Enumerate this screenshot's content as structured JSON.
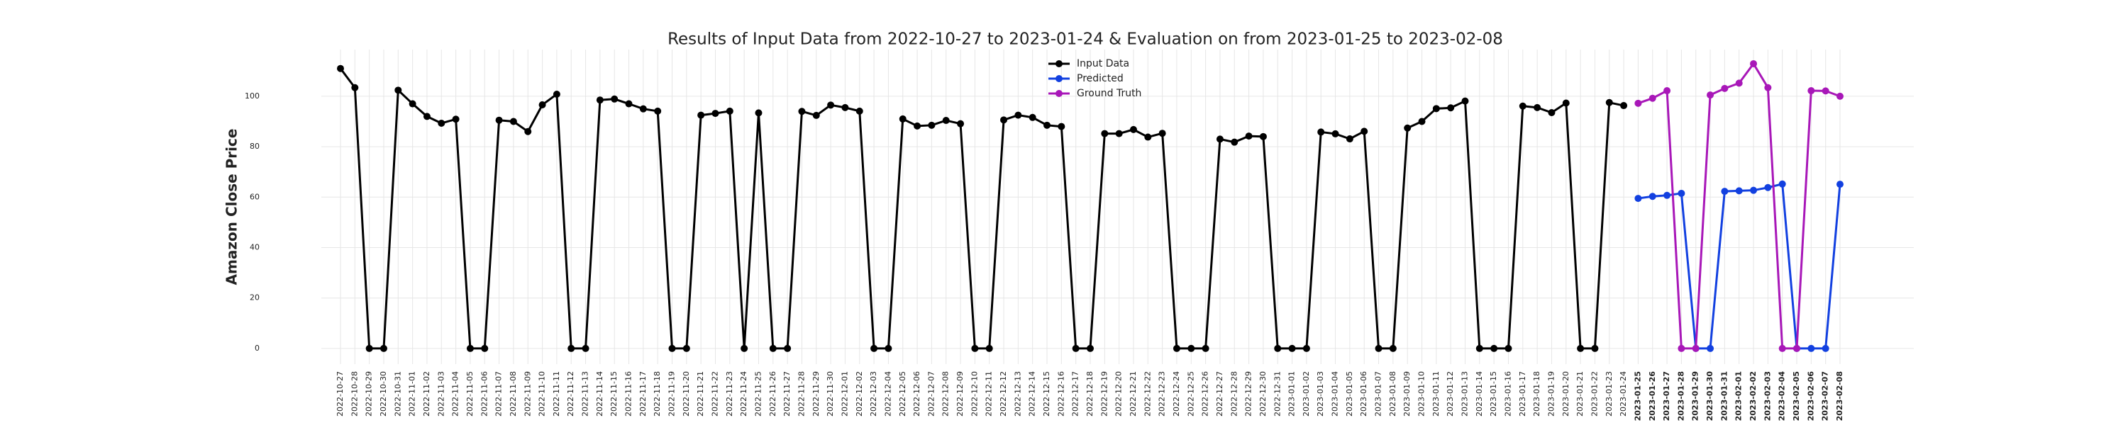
{
  "chart_data": {
    "type": "line",
    "title": "Results of Input Data from 2022-10-27 to 2023-01-24 & Evaluation on from 2023-01-25 to 2023-02-08",
    "y_label": "Amazon Close Price",
    "categories": [
      "2022-10-27",
      "2022-10-28",
      "2022-10-29",
      "2022-10-30",
      "2022-10-31",
      "2022-11-01",
      "2022-11-02",
      "2022-11-03",
      "2022-11-04",
      "2022-11-05",
      "2022-11-06",
      "2022-11-07",
      "2022-11-08",
      "2022-11-09",
      "2022-11-10",
      "2022-11-11",
      "2022-11-12",
      "2022-11-13",
      "2022-11-14",
      "2022-11-15",
      "2022-11-16",
      "2022-11-17",
      "2022-11-18",
      "2022-11-19",
      "2022-11-20",
      "2022-11-21",
      "2022-11-22",
      "2022-11-23",
      "2022-11-24",
      "2022-11-25",
      "2022-11-26",
      "2022-11-27",
      "2022-11-28",
      "2022-11-29",
      "2022-11-30",
      "2022-12-01",
      "2022-12-02",
      "2022-12-03",
      "2022-12-04",
      "2022-12-05",
      "2022-12-06",
      "2022-12-07",
      "2022-12-08",
      "2022-12-09",
      "2022-12-10",
      "2022-12-11",
      "2022-12-12",
      "2022-12-13",
      "2022-12-14",
      "2022-12-15",
      "2022-12-16",
      "2022-12-17",
      "2022-12-18",
      "2022-12-19",
      "2022-12-20",
      "2022-12-21",
      "2022-12-22",
      "2022-12-23",
      "2022-12-24",
      "2022-12-25",
      "2022-12-26",
      "2022-12-27",
      "2022-12-28",
      "2022-12-29",
      "2022-12-30",
      "2022-12-31",
      "2023-01-01",
      "2023-01-02",
      "2023-01-03",
      "2023-01-04",
      "2023-01-05",
      "2023-01-06",
      "2023-01-07",
      "2023-01-08",
      "2023-01-09",
      "2023-01-10",
      "2023-01-11",
      "2023-01-12",
      "2023-01-13",
      "2023-01-14",
      "2023-01-15",
      "2023-01-16",
      "2023-01-17",
      "2023-01-18",
      "2023-01-19",
      "2023-01-20",
      "2023-01-21",
      "2023-01-22",
      "2023-01-23",
      "2023-01-24",
      "2023-01-25",
      "2023-01-26",
      "2023-01-27",
      "2023-01-28",
      "2023-01-29",
      "2023-01-30",
      "2023-01-31",
      "2023-02-01",
      "2023-02-02",
      "2023-02-03",
      "2023-02-04",
      "2023-02-05",
      "2023-02-06",
      "2023-02-07",
      "2023-02-08"
    ],
    "series": [
      {
        "name": "Input Data",
        "color": "#000000",
        "values": [
          111,
          103.4,
          0,
          0,
          102.4,
          97,
          92,
          89.3,
          90.9,
          0,
          0,
          90.5,
          90,
          86,
          96.6,
          100.8,
          0,
          0,
          98.5,
          98.9,
          97,
          95,
          94.1,
          0,
          0,
          92.5,
          93.2,
          94.1,
          0,
          93.4,
          0,
          0,
          94,
          92.4,
          96.5,
          95.5,
          94.1,
          0,
          0,
          91,
          88.2,
          88.5,
          90.4,
          89.1,
          0,
          0,
          90.6,
          92.5,
          91.6,
          88.5,
          88,
          0,
          0,
          85.2,
          85.2,
          86.8,
          83.8,
          85.3,
          0,
          0,
          0,
          83,
          81.8,
          84.2,
          84,
          0,
          0,
          0,
          85.8,
          85.1,
          83.1,
          86.1,
          0,
          0,
          87.4,
          90,
          95.1,
          95.4,
          98.1,
          0,
          0,
          0,
          96.1,
          95.5,
          93.5,
          97.3,
          0,
          0,
          97.5,
          96.3,
          null,
          null,
          null,
          null,
          null,
          null,
          null,
          null,
          null,
          null,
          null,
          null,
          null,
          null,
          null
        ]
      },
      {
        "name": "Predicted",
        "color": "#1240e0",
        "values": [
          null,
          null,
          null,
          null,
          null,
          null,
          null,
          null,
          null,
          null,
          null,
          null,
          null,
          null,
          null,
          null,
          null,
          null,
          null,
          null,
          null,
          null,
          null,
          null,
          null,
          null,
          null,
          null,
          null,
          null,
          null,
          null,
          null,
          null,
          null,
          null,
          null,
          null,
          null,
          null,
          null,
          null,
          null,
          null,
          null,
          null,
          null,
          null,
          null,
          null,
          null,
          null,
          null,
          null,
          null,
          null,
          null,
          null,
          null,
          null,
          null,
          null,
          null,
          null,
          null,
          null,
          null,
          null,
          null,
          null,
          null,
          null,
          null,
          null,
          null,
          null,
          null,
          null,
          null,
          null,
          null,
          null,
          null,
          null,
          null,
          null,
          null,
          null,
          null,
          null,
          59.5,
          60.3,
          60.7,
          61.5,
          0,
          0,
          62.3,
          62.5,
          62.7,
          63.8,
          65.2,
          0,
          0,
          0,
          65.1
        ]
      },
      {
        "name": "Ground Truth",
        "color": "#a817b8",
        "values": [
          null,
          null,
          null,
          null,
          null,
          null,
          null,
          null,
          null,
          null,
          null,
          null,
          null,
          null,
          null,
          null,
          null,
          null,
          null,
          null,
          null,
          null,
          null,
          null,
          null,
          null,
          null,
          null,
          null,
          null,
          null,
          null,
          null,
          null,
          null,
          null,
          null,
          null,
          null,
          null,
          null,
          null,
          null,
          null,
          null,
          null,
          null,
          null,
          null,
          null,
          null,
          null,
          null,
          null,
          null,
          null,
          null,
          null,
          null,
          null,
          null,
          null,
          null,
          null,
          null,
          null,
          null,
          null,
          null,
          null,
          null,
          null,
          null,
          null,
          null,
          null,
          null,
          null,
          null,
          null,
          null,
          null,
          null,
          null,
          null,
          null,
          null,
          null,
          null,
          null,
          97.2,
          99.2,
          102.2,
          0,
          0,
          100.5,
          103.1,
          105.2,
          112.9,
          103.4,
          0,
          0,
          102.2,
          102.1,
          100
        ]
      }
    ],
    "ylim": [
      -6.2,
      118.5
    ],
    "yticks": [
      0,
      20,
      40,
      60,
      80,
      100
    ],
    "grid": true,
    "legend": "upper center"
  }
}
